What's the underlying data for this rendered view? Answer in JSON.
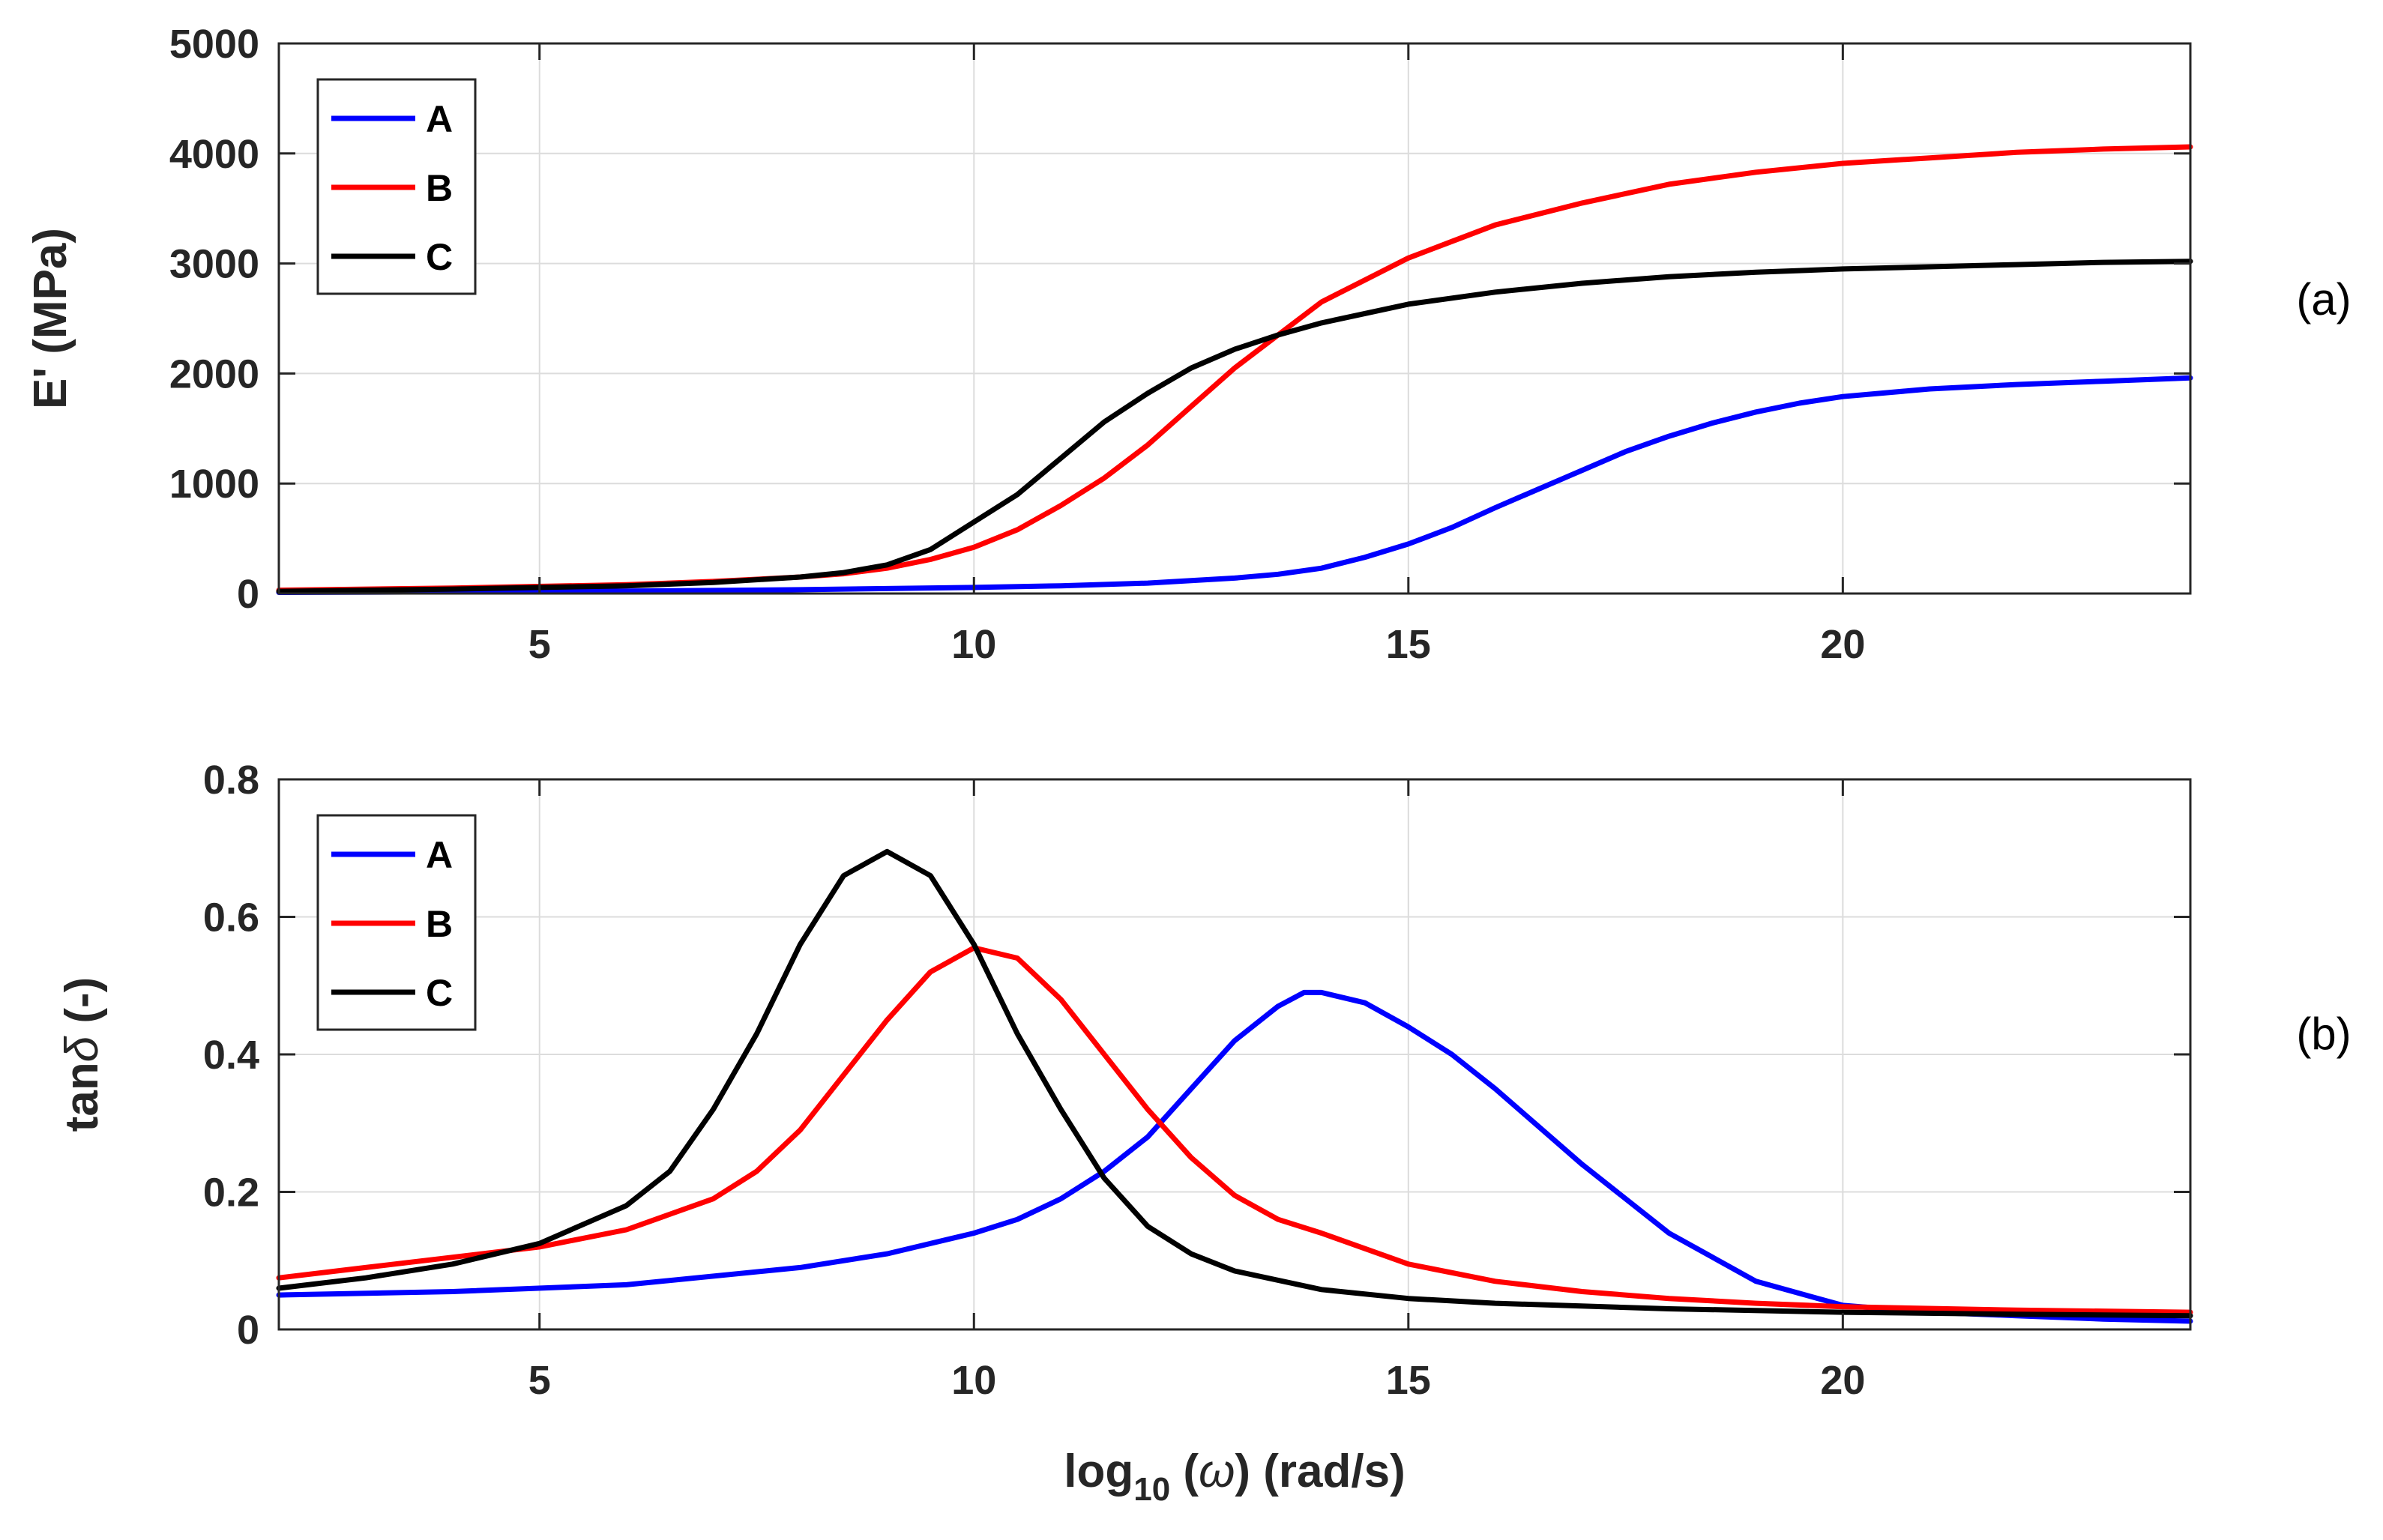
{
  "colors": {
    "A": "#0000ff",
    "B": "#ff0000",
    "C": "#000000"
  },
  "chart_data": [
    {
      "type": "line",
      "panel_tag": "(a)",
      "ylabel": "E' (MPa)",
      "xlabel": "",
      "xlim": [
        2,
        24
      ],
      "ylim": [
        0,
        5000
      ],
      "xticks": [
        5,
        10,
        15,
        20
      ],
      "xtick_labels": [
        "5",
        "10",
        "15",
        "20"
      ],
      "yticks": [
        0,
        1000,
        2000,
        3000,
        4000,
        5000
      ],
      "ytick_labels": [
        "0",
        "1000",
        "2000",
        "3000",
        "4000",
        "5000"
      ],
      "grid": true,
      "legend": "top-left",
      "series": [
        {
          "name": "A",
          "color": "#0000ff",
          "x": [
            2,
            4,
            6,
            8,
            9,
            10,
            11,
            12,
            13,
            13.5,
            14,
            14.5,
            15,
            15.5,
            16,
            16.5,
            17,
            17.5,
            18,
            18.5,
            19,
            19.5,
            20,
            21,
            22,
            23,
            24
          ],
          "y": [
            10,
            15,
            22,
            35,
            45,
            55,
            70,
            95,
            140,
            175,
            230,
            330,
            450,
            600,
            780,
            950,
            1120,
            1290,
            1430,
            1550,
            1650,
            1730,
            1790,
            1860,
            1900,
            1930,
            1960
          ]
        },
        {
          "name": "B",
          "color": "#ff0000",
          "x": [
            2,
            4,
            6,
            7,
            8,
            8.5,
            9,
            9.5,
            10,
            10.5,
            11,
            11.5,
            12,
            12.5,
            13,
            13.5,
            14,
            14.5,
            15,
            15.5,
            16,
            17,
            18,
            19,
            20,
            21,
            22,
            23,
            24
          ],
          "y": [
            30,
            50,
            80,
            110,
            150,
            180,
            230,
            310,
            420,
            580,
            800,
            1050,
            1350,
            1700,
            2050,
            2350,
            2650,
            2850,
            3050,
            3200,
            3350,
            3550,
            3720,
            3830,
            3910,
            3960,
            4010,
            4040,
            4060
          ]
        },
        {
          "name": "C",
          "color": "#000000",
          "x": [
            2,
            4,
            6,
            7,
            8,
            8.5,
            9,
            9.5,
            10,
            10.5,
            11,
            11.5,
            12,
            12.5,
            13,
            13.5,
            14,
            15,
            16,
            17,
            18,
            19,
            20,
            21,
            22,
            23,
            24
          ],
          "y": [
            20,
            40,
            70,
            100,
            150,
            190,
            260,
            400,
            650,
            900,
            1230,
            1560,
            1820,
            2050,
            2220,
            2350,
            2460,
            2630,
            2740,
            2820,
            2880,
            2920,
            2950,
            2970,
            2990,
            3010,
            3020
          ]
        }
      ]
    },
    {
      "type": "line",
      "panel_tag": "(b)",
      "ylabel": "tanδ (-)",
      "ylabel_main": "tan",
      "ylabel_symbol": "δ",
      "ylabel_unit": " (-)",
      "xlabel": "log10 (ω) (rad/s)",
      "xlabel_main": "log",
      "xlabel_sub": "10",
      "xlabel_mid": " (",
      "xlabel_symbol": "ω",
      "xlabel_end": ") (rad/s)",
      "xlim": [
        2,
        24
      ],
      "ylim": [
        0,
        0.8
      ],
      "xticks": [
        5,
        10,
        15,
        20
      ],
      "xtick_labels": [
        "5",
        "10",
        "15",
        "20"
      ],
      "yticks": [
        0,
        0.2,
        0.4,
        0.6,
        0.8
      ],
      "ytick_labels": [
        "0",
        "0.2",
        "0.4",
        "0.6",
        "0.8"
      ],
      "grid": true,
      "legend": "top-left",
      "series": [
        {
          "name": "A",
          "color": "#0000ff",
          "x": [
            2,
            4,
            6,
            8,
            9,
            10,
            10.5,
            11,
            11.5,
            12,
            12.5,
            13,
            13.5,
            13.8,
            14,
            14.5,
            15,
            15.5,
            16,
            17,
            18,
            19,
            20,
            21,
            22,
            23,
            24
          ],
          "y": [
            0.05,
            0.055,
            0.065,
            0.09,
            0.11,
            0.14,
            0.16,
            0.19,
            0.23,
            0.28,
            0.35,
            0.42,
            0.47,
            0.49,
            0.49,
            0.475,
            0.44,
            0.4,
            0.35,
            0.24,
            0.14,
            0.07,
            0.035,
            0.025,
            0.02,
            0.015,
            0.012
          ]
        },
        {
          "name": "B",
          "color": "#ff0000",
          "x": [
            2,
            3,
            4,
            5,
            6,
            7,
            7.5,
            8,
            8.5,
            9,
            9.5,
            10,
            10.5,
            11,
            11.5,
            12,
            12.5,
            13,
            13.5,
            14,
            15,
            16,
            17,
            18,
            19,
            20,
            22,
            24
          ],
          "y": [
            0.075,
            0.09,
            0.105,
            0.12,
            0.145,
            0.19,
            0.23,
            0.29,
            0.37,
            0.45,
            0.52,
            0.555,
            0.54,
            0.48,
            0.4,
            0.32,
            0.25,
            0.195,
            0.16,
            0.14,
            0.095,
            0.07,
            0.055,
            0.045,
            0.038,
            0.033,
            0.028,
            0.025
          ]
        },
        {
          "name": "C",
          "color": "#000000",
          "x": [
            2,
            3,
            4,
            5,
            6,
            6.5,
            7,
            7.5,
            8,
            8.5,
            9,
            9.5,
            10,
            10.5,
            11,
            11.5,
            12,
            12.5,
            13,
            14,
            15,
            16,
            18,
            20,
            22,
            24
          ],
          "y": [
            0.06,
            0.075,
            0.095,
            0.125,
            0.18,
            0.23,
            0.32,
            0.43,
            0.56,
            0.66,
            0.695,
            0.66,
            0.56,
            0.43,
            0.32,
            0.22,
            0.15,
            0.11,
            0.085,
            0.058,
            0.045,
            0.038,
            0.03,
            0.025,
            0.022,
            0.02
          ]
        }
      ]
    }
  ]
}
